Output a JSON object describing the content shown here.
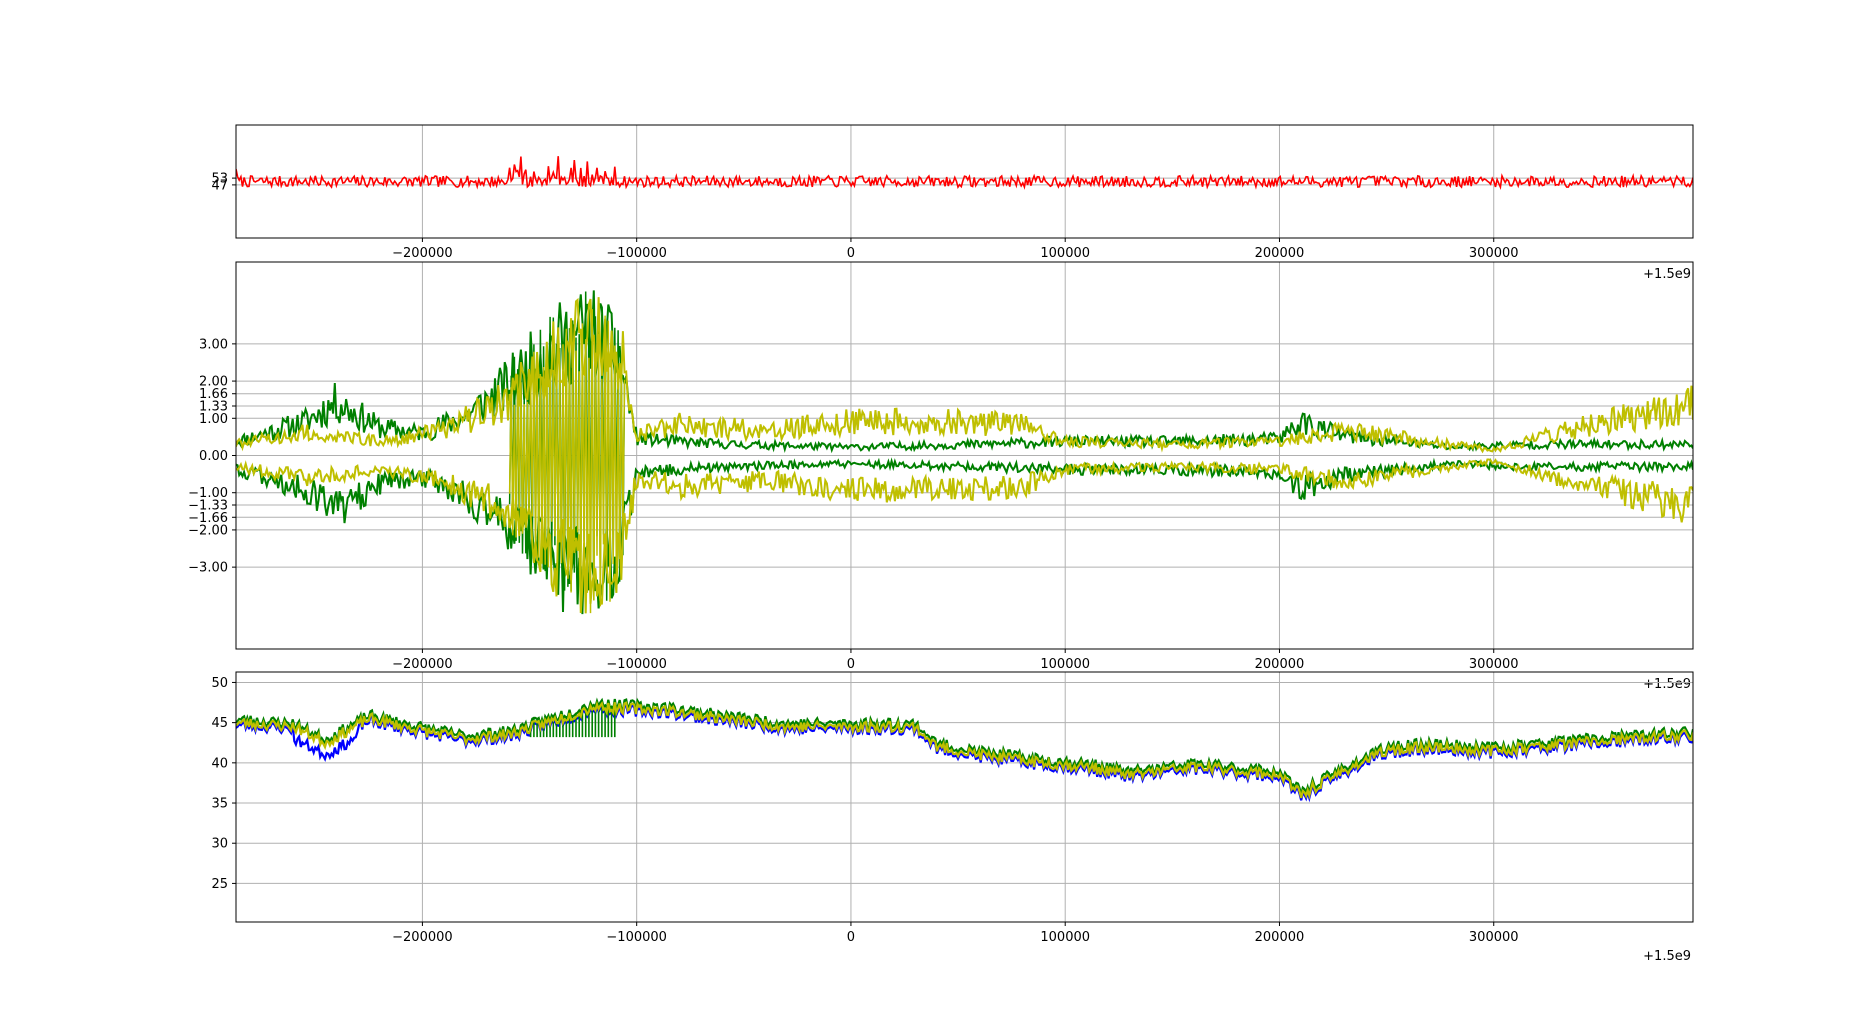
{
  "chart_data": [
    {
      "type": "line",
      "panel": "top",
      "xlim": [
        -287000,
        393000
      ],
      "ylim": [
        0,
        100
      ],
      "x_ticks": [
        -200000,
        -100000,
        0,
        100000,
        200000,
        300000
      ],
      "x_tick_labels": [
        "−200000",
        "−100000",
        "0",
        "100000",
        "200000",
        "300000"
      ],
      "x_offset_label": "+1.5e9",
      "y_ticks": [
        47,
        53
      ],
      "y_tick_labels": [
        "47",
        "53"
      ],
      "grid": true,
      "series": [
        {
          "color": "#ff0000",
          "baseline": 50,
          "noise": 5,
          "seed": 7,
          "spikes": [
            [
              -160000,
              -110000,
              18
            ]
          ]
        }
      ]
    },
    {
      "type": "line",
      "panel": "middle",
      "xlim": [
        -287000,
        393000
      ],
      "ylim": [
        -5.2,
        5.2
      ],
      "x_ticks": [
        -200000,
        -100000,
        0,
        100000,
        200000,
        300000
      ],
      "x_tick_labels": [
        "−200000",
        "−100000",
        "0",
        "100000",
        "200000",
        "300000"
      ],
      "x_offset_label": "+1.5e9",
      "y_ticks": [
        3.0,
        2.0,
        1.66,
        1.33,
        1.0,
        0.0,
        -1.0,
        -1.33,
        -1.66,
        -2.0,
        -3.0
      ],
      "y_tick_labels": [
        "3.00",
        "2.00",
        "1.66",
        "1.33",
        "1.00",
        "0.00",
        "−1.00",
        "−1.33",
        "−1.66",
        "−2.00",
        "−3.00"
      ],
      "grid": true,
      "series": [
        {
          "color": "#008000",
          "envelope": [
            [
              -287000,
              0.5
            ],
            [
              -255000,
              1.2
            ],
            [
              -240000,
              1.9
            ],
            [
              -220000,
              1.0
            ],
            [
              -200000,
              0.8
            ],
            [
              -180000,
              1.4
            ],
            [
              -160000,
              2.5
            ],
            [
              -140000,
              3.8
            ],
            [
              -122000,
              4.5
            ],
            [
              -108000,
              3.5
            ],
            [
              -100000,
              0.6
            ],
            [
              -60000,
              0.4
            ],
            [
              0,
              0.3
            ],
            [
              60000,
              0.4
            ],
            [
              100000,
              0.5
            ],
            [
              150000,
              0.5
            ],
            [
              200000,
              0.6
            ],
            [
              210000,
              1.2
            ],
            [
              230000,
              0.7
            ],
            [
              280000,
              0.3
            ],
            [
              320000,
              0.4
            ],
            [
              393000,
              0.4
            ]
          ]
        },
        {
          "color": "#bfbf00",
          "envelope": [
            [
              -287000,
              0.4
            ],
            [
              -255000,
              0.8
            ],
            [
              -220000,
              0.5
            ],
            [
              -190000,
              0.9
            ],
            [
              -160000,
              2.0
            ],
            [
              -140000,
              3.5
            ],
            [
              -122000,
              4.3
            ],
            [
              -108000,
              3.8
            ],
            [
              -100000,
              0.8
            ],
            [
              -80000,
              1.1
            ],
            [
              -40000,
              0.9
            ],
            [
              0,
              1.2
            ],
            [
              40000,
              1.2
            ],
            [
              80000,
              1.1
            ],
            [
              100000,
              0.5
            ],
            [
              150000,
              0.4
            ],
            [
              200000,
              0.5
            ],
            [
              230000,
              0.9
            ],
            [
              260000,
              0.6
            ],
            [
              300000,
              0.2
            ],
            [
              340000,
              1.0
            ],
            [
              393000,
              1.8
            ]
          ]
        }
      ]
    },
    {
      "type": "line",
      "panel": "bottom",
      "xlim": [
        -287000,
        393000
      ],
      "ylim": [
        20.2,
        51.3
      ],
      "x_ticks": [
        -200000,
        -100000,
        0,
        100000,
        200000,
        300000
      ],
      "x_tick_labels": [
        "−200000",
        "−100000",
        "0",
        "100000",
        "200000",
        "300000"
      ],
      "x_offset_label": "+1.5e9",
      "y_ticks": [
        25,
        30,
        35,
        40,
        45,
        50
      ],
      "y_tick_labels": [
        "25",
        "30",
        "35",
        "40",
        "45",
        "50"
      ],
      "grid": true,
      "trend": [
        [
          -287000,
          45
        ],
        [
          -260000,
          44.5
        ],
        [
          -245000,
          42.5
        ],
        [
          -225000,
          45.5
        ],
        [
          -200000,
          44
        ],
        [
          -180000,
          43
        ],
        [
          -160000,
          43.5
        ],
        [
          -130000,
          46
        ],
        [
          -120000,
          47
        ],
        [
          -85000,
          46.5
        ],
        [
          -60000,
          45.5
        ],
        [
          -30000,
          44.5
        ],
        [
          0,
          44.5
        ],
        [
          30000,
          44.5
        ],
        [
          40000,
          42
        ],
        [
          60000,
          41
        ],
        [
          90000,
          40
        ],
        [
          110000,
          39.5
        ],
        [
          130000,
          38.5
        ],
        [
          160000,
          39.5
        ],
        [
          200000,
          38.5
        ],
        [
          210000,
          36
        ],
        [
          230000,
          39
        ],
        [
          250000,
          41.5
        ],
        [
          270000,
          42
        ],
        [
          300000,
          41.5
        ],
        [
          340000,
          42.5
        ],
        [
          393000,
          43.5
        ]
      ],
      "series": [
        {
          "color": "#0000ff",
          "offset": -0.3
        },
        {
          "color": "#008000",
          "offset": 0.4
        },
        {
          "color": "#bfbf00",
          "offset": 0.0
        }
      ]
    }
  ]
}
